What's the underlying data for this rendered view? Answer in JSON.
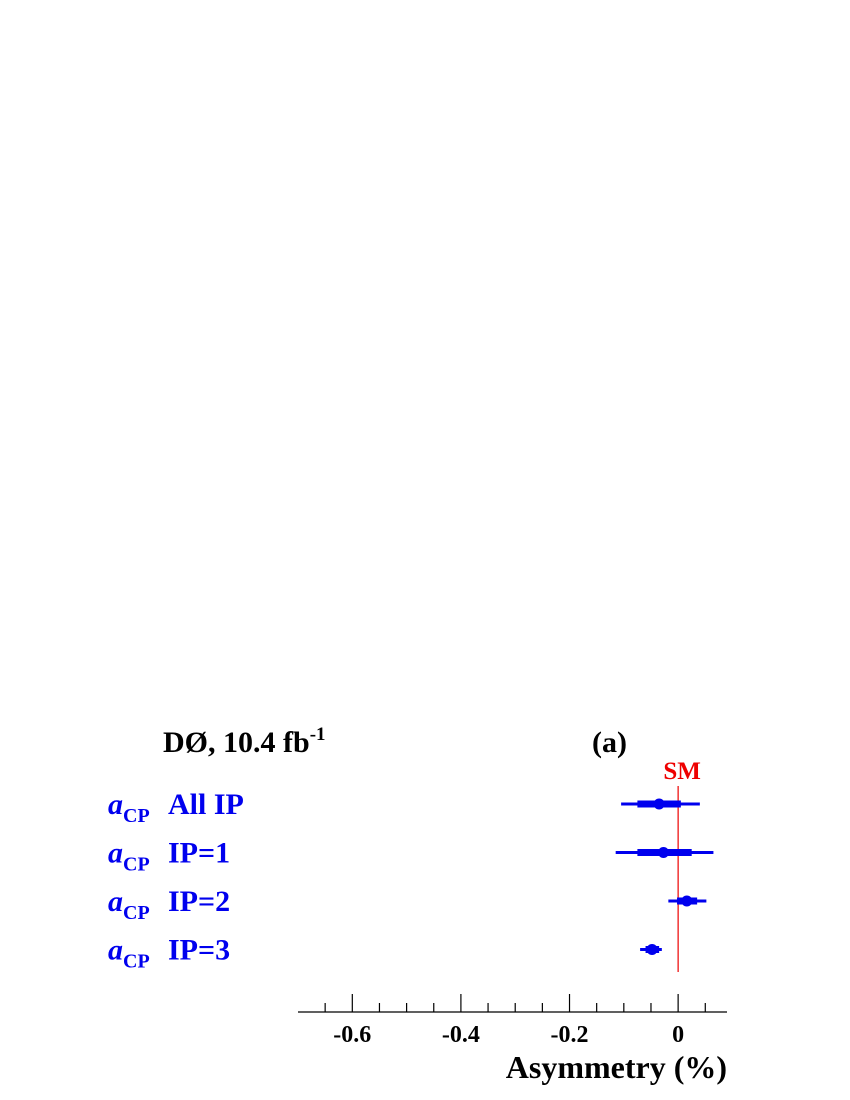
{
  "header": {
    "experiment": "DØ, 10.4 fb",
    "lumi_exponent": "-1",
    "panel": "(a)"
  },
  "colors": {
    "data": "#0000ee",
    "sm": "#ee0000",
    "text": "#000000"
  },
  "chart_data": {
    "type": "forest",
    "title": "",
    "xlabel": "Asymmetry (%)",
    "xlim": [
      -0.7,
      0.09
    ],
    "x_ticks": [
      -0.6,
      -0.4,
      -0.2,
      0
    ],
    "x_tick_labels": [
      "-0.6",
      "-0.4",
      "-0.2",
      "0"
    ],
    "minor_tick_step": 0.05,
    "reference_line": {
      "label": "SM",
      "x": 0
    },
    "rows": [
      {
        "symbol": "a",
        "subscript": "CP",
        "label": "All IP",
        "value": -0.035,
        "stat": [
          -0.075,
          0.005
        ],
        "total": [
          -0.105,
          0.04
        ]
      },
      {
        "symbol": "a",
        "subscript": "CP",
        "label": "IP=1",
        "value": -0.027,
        "stat": [
          -0.075,
          0.025
        ],
        "total": [
          -0.115,
          0.065
        ]
      },
      {
        "symbol": "a",
        "subscript": "CP",
        "label": "IP=2",
        "value": 0.016,
        "stat": [
          -0.002,
          0.035
        ],
        "total": [
          -0.018,
          0.052
        ]
      },
      {
        "symbol": "a",
        "subscript": "CP",
        "label": "IP=3",
        "value": -0.048,
        "stat": [
          -0.06,
          -0.035
        ],
        "total": [
          -0.07,
          -0.03
        ]
      }
    ]
  }
}
